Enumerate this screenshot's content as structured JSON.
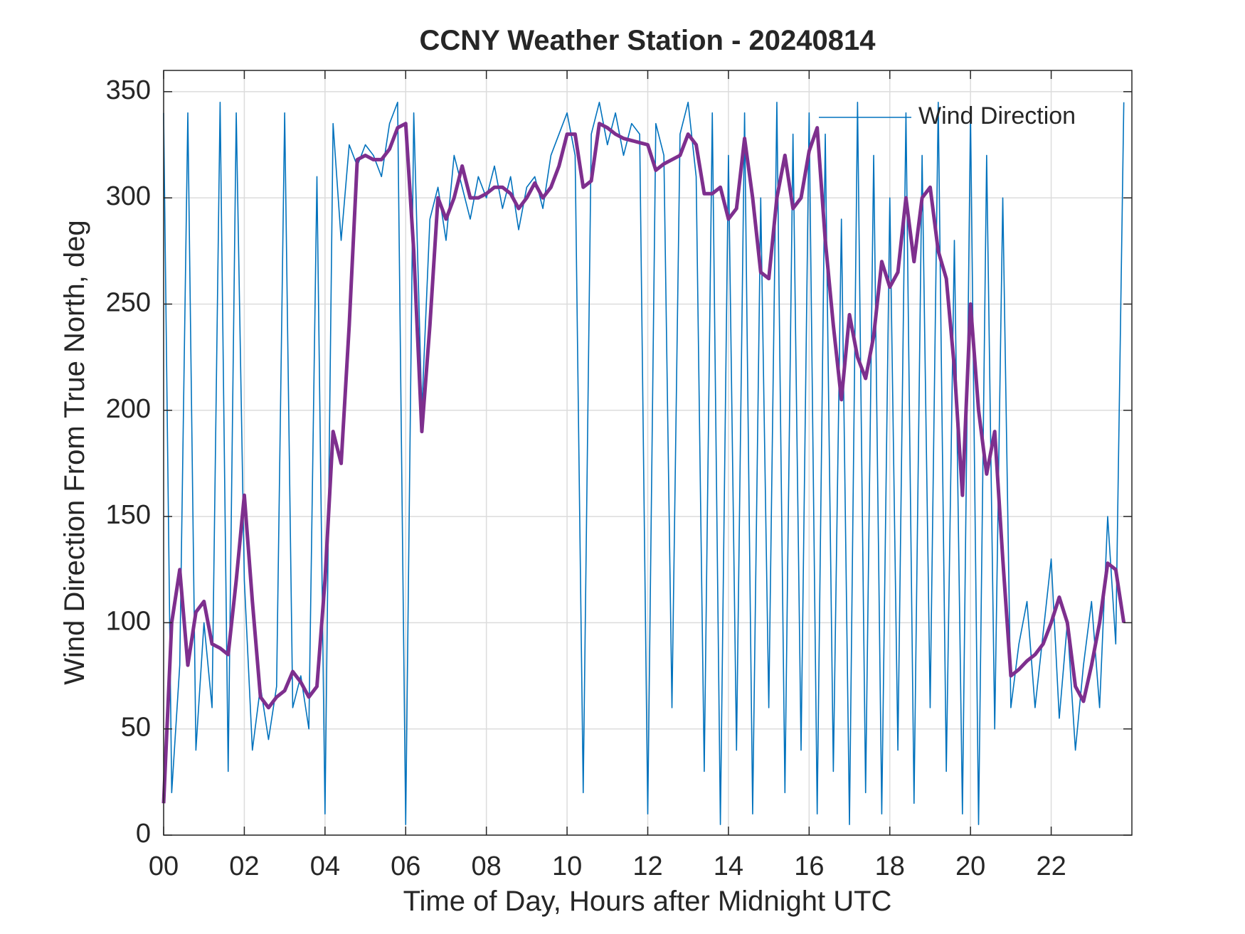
{
  "chart_data": {
    "type": "line",
    "title": "CCNY Weather Station - 20240814",
    "xlabel": "Time of Day, Hours after Midnight UTC",
    "ylabel": "Wind Direction From True North, deg",
    "x": [
      0,
      0.2,
      0.4,
      0.6,
      0.8,
      1,
      1.2,
      1.4,
      1.6,
      1.8,
      2,
      2.2,
      2.4,
      2.6,
      2.8,
      3,
      3.2,
      3.4,
      3.6,
      3.8,
      4,
      4.2,
      4.4,
      4.6,
      4.8,
      5,
      5.2,
      5.4,
      5.6,
      5.8,
      6,
      6.2,
      6.4,
      6.6,
      6.8,
      7,
      7.2,
      7.4,
      7.6,
      7.8,
      8,
      8.2,
      8.4,
      8.6,
      8.8,
      9,
      9.2,
      9.4,
      9.6,
      9.8,
      10,
      10.2,
      10.4,
      10.6,
      10.8,
      11,
      11.2,
      11.4,
      11.6,
      11.8,
      12,
      12.2,
      12.4,
      12.6,
      12.8,
      13,
      13.2,
      13.4,
      13.6,
      13.8,
      14,
      14.2,
      14.4,
      14.6,
      14.8,
      15,
      15.2,
      15.4,
      15.6,
      15.8,
      16,
      16.2,
      16.4,
      16.6,
      16.8,
      17,
      17.2,
      17.4,
      17.6,
      17.8,
      18,
      18.2,
      18.4,
      18.6,
      18.8,
      19,
      19.2,
      19.4,
      19.6,
      19.8,
      20,
      20.2,
      20.4,
      20.6,
      20.8,
      21,
      21.2,
      21.4,
      21.6,
      21.8,
      22,
      22.2,
      22.4,
      22.6,
      22.8,
      23,
      23.2,
      23.4,
      23.6,
      23.8
    ],
    "series": [
      {
        "name": "Wind Direction",
        "color": "#0072bd",
        "values": [
          340,
          20,
          80,
          340,
          40,
          100,
          60,
          345,
          30,
          340,
          120,
          40,
          70,
          45,
          70,
          340,
          60,
          75,
          50,
          310,
          10,
          335,
          280,
          325,
          315,
          325,
          320,
          310,
          335,
          345,
          5,
          340,
          200,
          290,
          305,
          280,
          320,
          305,
          290,
          310,
          300,
          315,
          295,
          310,
          285,
          305,
          310,
          295,
          320,
          330,
          340,
          320,
          20,
          330,
          345,
          325,
          340,
          320,
          335,
          330,
          10,
          335,
          320,
          60,
          330,
          345,
          310,
          30,
          340,
          5,
          320,
          40,
          340,
          10,
          300,
          60,
          345,
          20,
          330,
          40,
          340,
          10,
          330,
          30,
          290,
          5,
          345,
          20,
          320,
          10,
          300,
          40,
          340,
          15,
          320,
          60,
          345,
          30,
          280,
          10,
          340,
          5,
          320,
          50,
          300,
          60,
          90,
          110,
          60,
          95,
          130,
          55,
          100,
          40,
          80,
          110,
          60,
          150,
          90,
          345
        ]
      },
      {
        "color": "#7e2f8e",
        "values": [
          15,
          100,
          125,
          80,
          105,
          110,
          90,
          88,
          85,
          120,
          160,
          110,
          65,
          60,
          65,
          68,
          77,
          72,
          65,
          70,
          120,
          190,
          175,
          240,
          318,
          320,
          318,
          318,
          323,
          333,
          335,
          275,
          190,
          240,
          300,
          290,
          300,
          315,
          300,
          300,
          302,
          305,
          305,
          302,
          295,
          300,
          307,
          300,
          305,
          315,
          330,
          330,
          305,
          308,
          335,
          333,
          330,
          328,
          327,
          326,
          325,
          313,
          316,
          318,
          320,
          330,
          325,
          302,
          302,
          305,
          290,
          295,
          328,
          300,
          265,
          262,
          300,
          320,
          295,
          300,
          322,
          333,
          280,
          240,
          205,
          245,
          225,
          215,
          235,
          270,
          258,
          265,
          300,
          270,
          300,
          305,
          275,
          262,
          220,
          160,
          250,
          200,
          170,
          190,
          130,
          75,
          78,
          82,
          85,
          90,
          100,
          112,
          100,
          70,
          63,
          80,
          100,
          128,
          125,
          100
        ]
      }
    ],
    "xlim": [
      0,
      24
    ],
    "xticks": [
      {
        "value": 0,
        "label": "00"
      },
      {
        "value": 2,
        "label": "02"
      },
      {
        "value": 4,
        "label": "04"
      },
      {
        "value": 6,
        "label": "06"
      },
      {
        "value": 8,
        "label": "08"
      },
      {
        "value": 10,
        "label": "10"
      },
      {
        "value": 12,
        "label": "12"
      },
      {
        "value": 14,
        "label": "14"
      },
      {
        "value": 16,
        "label": "16"
      },
      {
        "value": 18,
        "label": "18"
      },
      {
        "value": 20,
        "label": "20"
      },
      {
        "value": 22,
        "label": "22"
      }
    ],
    "ylim": [
      0,
      360
    ],
    "yticks": [
      0,
      50,
      100,
      150,
      200,
      250,
      300,
      350
    ],
    "grid": true,
    "legend": "northeast"
  }
}
